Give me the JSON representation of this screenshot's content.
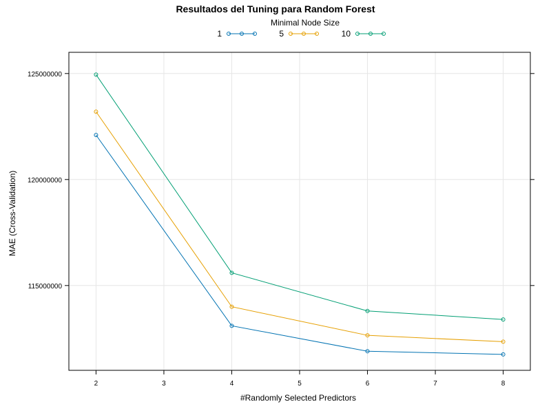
{
  "chart_data": {
    "type": "line",
    "title": "Resultados del Tuning para Random Forest",
    "xlabel": "#Randomly Selected Predictors",
    "ylabel": "MAE (Cross-Validation)",
    "legend_title": "Minimal Node Size",
    "legend_position": "top",
    "grid": true,
    "xlim": [
      1.6,
      8.4
    ],
    "ylim": [
      111000000,
      126000000
    ],
    "x_ticks": [
      2,
      3,
      4,
      5,
      6,
      7,
      8
    ],
    "y_ticks": [
      115000000,
      120000000,
      125000000
    ],
    "x": [
      2,
      4,
      6,
      8
    ],
    "series": [
      {
        "name": "1",
        "color": "#0072B2",
        "values": [
          122100000,
          113100000,
          111900000,
          111750000
        ]
      },
      {
        "name": "5",
        "color": "#E69F00",
        "values": [
          123200000,
          114000000,
          112650000,
          112350000
        ]
      },
      {
        "name": "10",
        "color": "#009E73",
        "values": [
          124950000,
          115600000,
          113800000,
          113400000
        ]
      }
    ]
  }
}
